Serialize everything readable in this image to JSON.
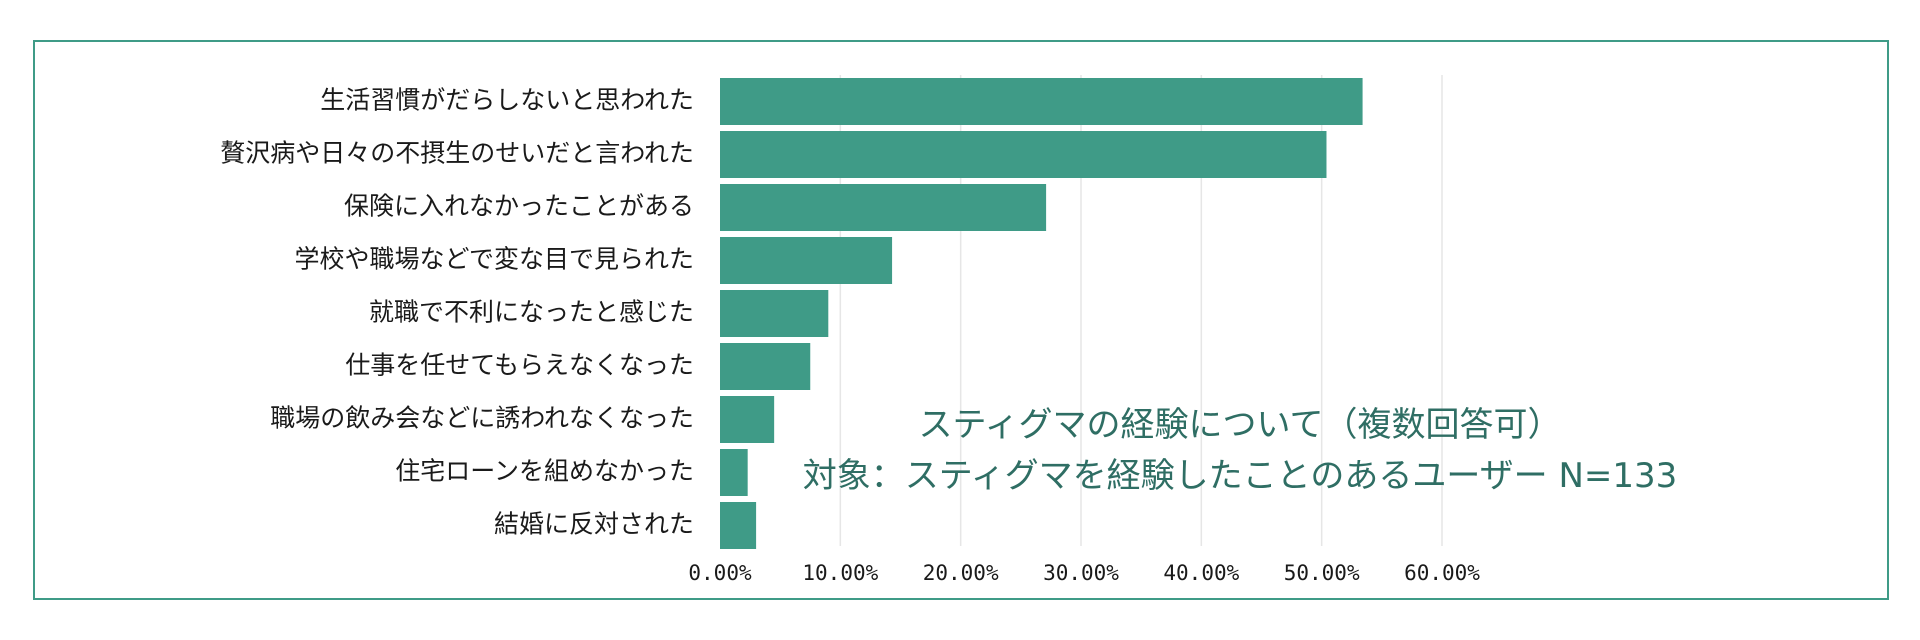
{
  "chart_data": {
    "type": "bar",
    "orientation": "horizontal",
    "categories": [
      "生活習慣がだらしないと思われた",
      "贅沢病や日々の不摂生のせいだと言われた",
      "保険に入れなかったことがある",
      "学校や職場などで変な目で見られた",
      "就職で不利になったと感じた",
      "仕事を任せてもらえなくなった",
      "職場の飲み会などに誘われなくなった",
      "住宅ローンを組めなかった",
      "結婚に反対された"
    ],
    "values": [
      53.4,
      50.4,
      27.1,
      14.3,
      9.0,
      7.5,
      4.5,
      2.3,
      3.0
    ],
    "xlim": [
      0,
      60
    ],
    "x_ticks": [
      "0.00%",
      "10.00%",
      "20.00%",
      "30.00%",
      "40.00%",
      "50.00%",
      "60.00%"
    ],
    "grid": true,
    "legend": "none",
    "annotation": [
      "スティグマの経験について（複数回答可）",
      "対象：スティグマを経験したことのあるユーザー N=133"
    ],
    "colors": {
      "bar": "#3f9b87",
      "border": "#3f9b87",
      "annotation": "#2f6e64"
    }
  }
}
